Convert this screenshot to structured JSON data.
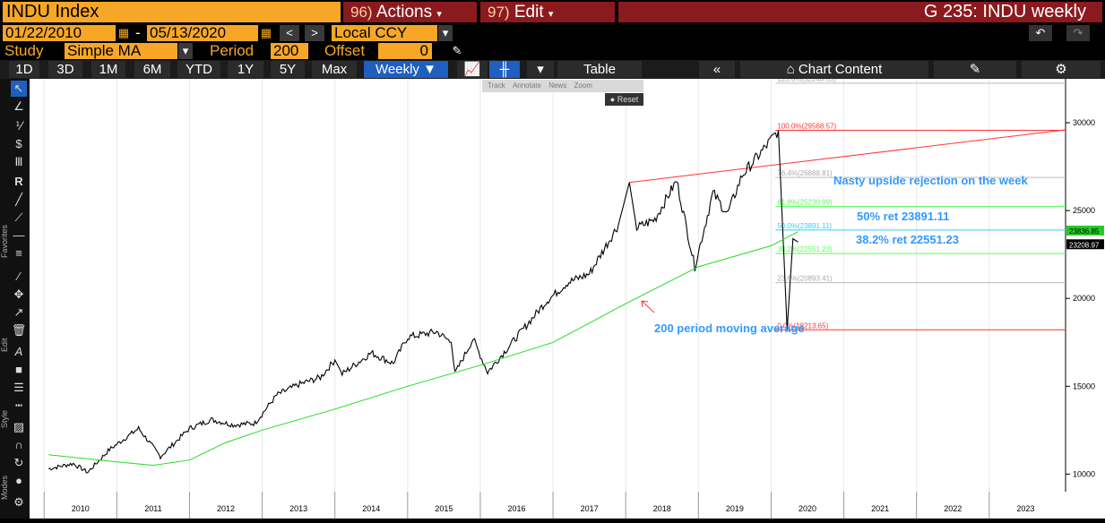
{
  "header": {
    "ticker": "INDU Index",
    "actions_num": "96)",
    "actions": "Actions",
    "edit_num": "97)",
    "edit": "Edit",
    "graph": "G 235: INDU weekly"
  },
  "range": {
    "start": "01/22/2010",
    "end": "05/13/2020",
    "currency": "Local CCY"
  },
  "study": {
    "label": "Study",
    "value": "Simple MA",
    "period_label": "Period",
    "period": "200",
    "offset_label": "Offset",
    "offset": "0"
  },
  "toolbar": {
    "periods": [
      "1D",
      "3D",
      "1M",
      "6M",
      "YTD",
      "1Y",
      "5Y",
      "Max"
    ],
    "frequency": "Weekly",
    "table": "Table",
    "chart_content": "Chart Content"
  },
  "mini_toolbar": {
    "track": "Track",
    "annotate": "Annotate",
    "news": "News",
    "zoom": "Zoom",
    "reset": "Reset"
  },
  "sidebar": {
    "favorites": "Favorites",
    "edit": "Edit",
    "style": "Style",
    "modes": "Modes"
  },
  "colors": {
    "price": "#ffffff",
    "ma": "#22dd22",
    "fib_red": "#ff3333",
    "fib_green": "#55ff55",
    "fib_cyan": "#33ccff",
    "annotation": "#3399ff"
  },
  "chart_data": {
    "type": "line",
    "x": [
      "2010",
      "2011",
      "2012",
      "2013",
      "2014",
      "2015",
      "2016",
      "2017",
      "2018",
      "2019",
      "2020",
      "2021",
      "2022",
      "2023"
    ],
    "yticks": [
      10000,
      15000,
      20000,
      25000,
      30000
    ],
    "ylim": [
      9000,
      32500
    ],
    "series": [
      {
        "values": [
          [
            2010.06,
            10300
          ],
          [
            2010.4,
            10600
          ],
          [
            2010.6,
            10100
          ],
          [
            2010.9,
            11400
          ],
          [
            2011.3,
            12600
          ],
          [
            2011.6,
            11000
          ],
          [
            2011.8,
            11800
          ],
          [
            2012.0,
            12600
          ],
          [
            2012.3,
            13100
          ],
          [
            2012.6,
            12800
          ],
          [
            2012.9,
            12900
          ],
          [
            2013.2,
            14500
          ],
          [
            2013.5,
            15100
          ],
          [
            2013.8,
            15500
          ],
          [
            2014.0,
            16500
          ],
          [
            2014.1,
            15700
          ],
          [
            2014.5,
            16900
          ],
          [
            2014.8,
            16300
          ],
          [
            2015.0,
            17800
          ],
          [
            2015.4,
            18100
          ],
          [
            2015.6,
            17500
          ],
          [
            2015.65,
            15700
          ],
          [
            2015.9,
            17700
          ],
          [
            2016.1,
            15800
          ],
          [
            2016.5,
            17800
          ],
          [
            2016.9,
            19800
          ],
          [
            2017.2,
            20900
          ],
          [
            2017.5,
            21400
          ],
          [
            2017.9,
            24200
          ],
          [
            2018.05,
            26600
          ],
          [
            2018.15,
            24000
          ],
          [
            2018.4,
            24500
          ],
          [
            2018.7,
            26700
          ],
          [
            2018.95,
            21800
          ],
          [
            2019.2,
            26000
          ],
          [
            2019.4,
            24800
          ],
          [
            2019.6,
            27000
          ],
          [
            2019.9,
            28500
          ],
          [
            2020.1,
            29570
          ],
          [
            2020.22,
            18214
          ],
          [
            2020.3,
            23400
          ],
          [
            2020.37,
            23209
          ]
        ]
      },
      {
        "values": [
          [
            2010.06,
            11100
          ],
          [
            2011.0,
            10700
          ],
          [
            2011.5,
            10500
          ],
          [
            2012.0,
            10800
          ],
          [
            2012.5,
            11800
          ],
          [
            2013.0,
            12500
          ],
          [
            2014.0,
            13700
          ],
          [
            2015.0,
            15000
          ],
          [
            2016.0,
            16200
          ],
          [
            2017.0,
            17500
          ],
          [
            2018.0,
            19700
          ],
          [
            2019.0,
            21800
          ],
          [
            2020.0,
            23000
          ],
          [
            2020.37,
            23800
          ]
        ]
      }
    ],
    "fib_levels": [
      {
        "label": "123.6%(32248.53)",
        "value": 32248.53
      },
      {
        "label": "100.0%(29568.57)",
        "value": 29568.57
      },
      {
        "label": "76.4%(26888.81)",
        "value": 26888.81
      },
      {
        "label": "61.8%(25230.99)",
        "value": 25230.99
      },
      {
        "label": "50.0%(23891.11)",
        "value": 23891.11
      },
      {
        "label": "38.2%(22551.23)",
        "value": 22551.23
      },
      {
        "label": "23.6%(20893.41)",
        "value": 20893.41
      },
      {
        "label": "0.0%(18213.65)",
        "value": 18213.65
      }
    ],
    "last_prices": [
      "23836.85",
      "23208.97"
    ],
    "annotations": [
      "Nasty upside rejection on the week",
      "50% ret 23891.11",
      "38.2% ret 22551.23",
      "200 period moving average"
    ]
  }
}
